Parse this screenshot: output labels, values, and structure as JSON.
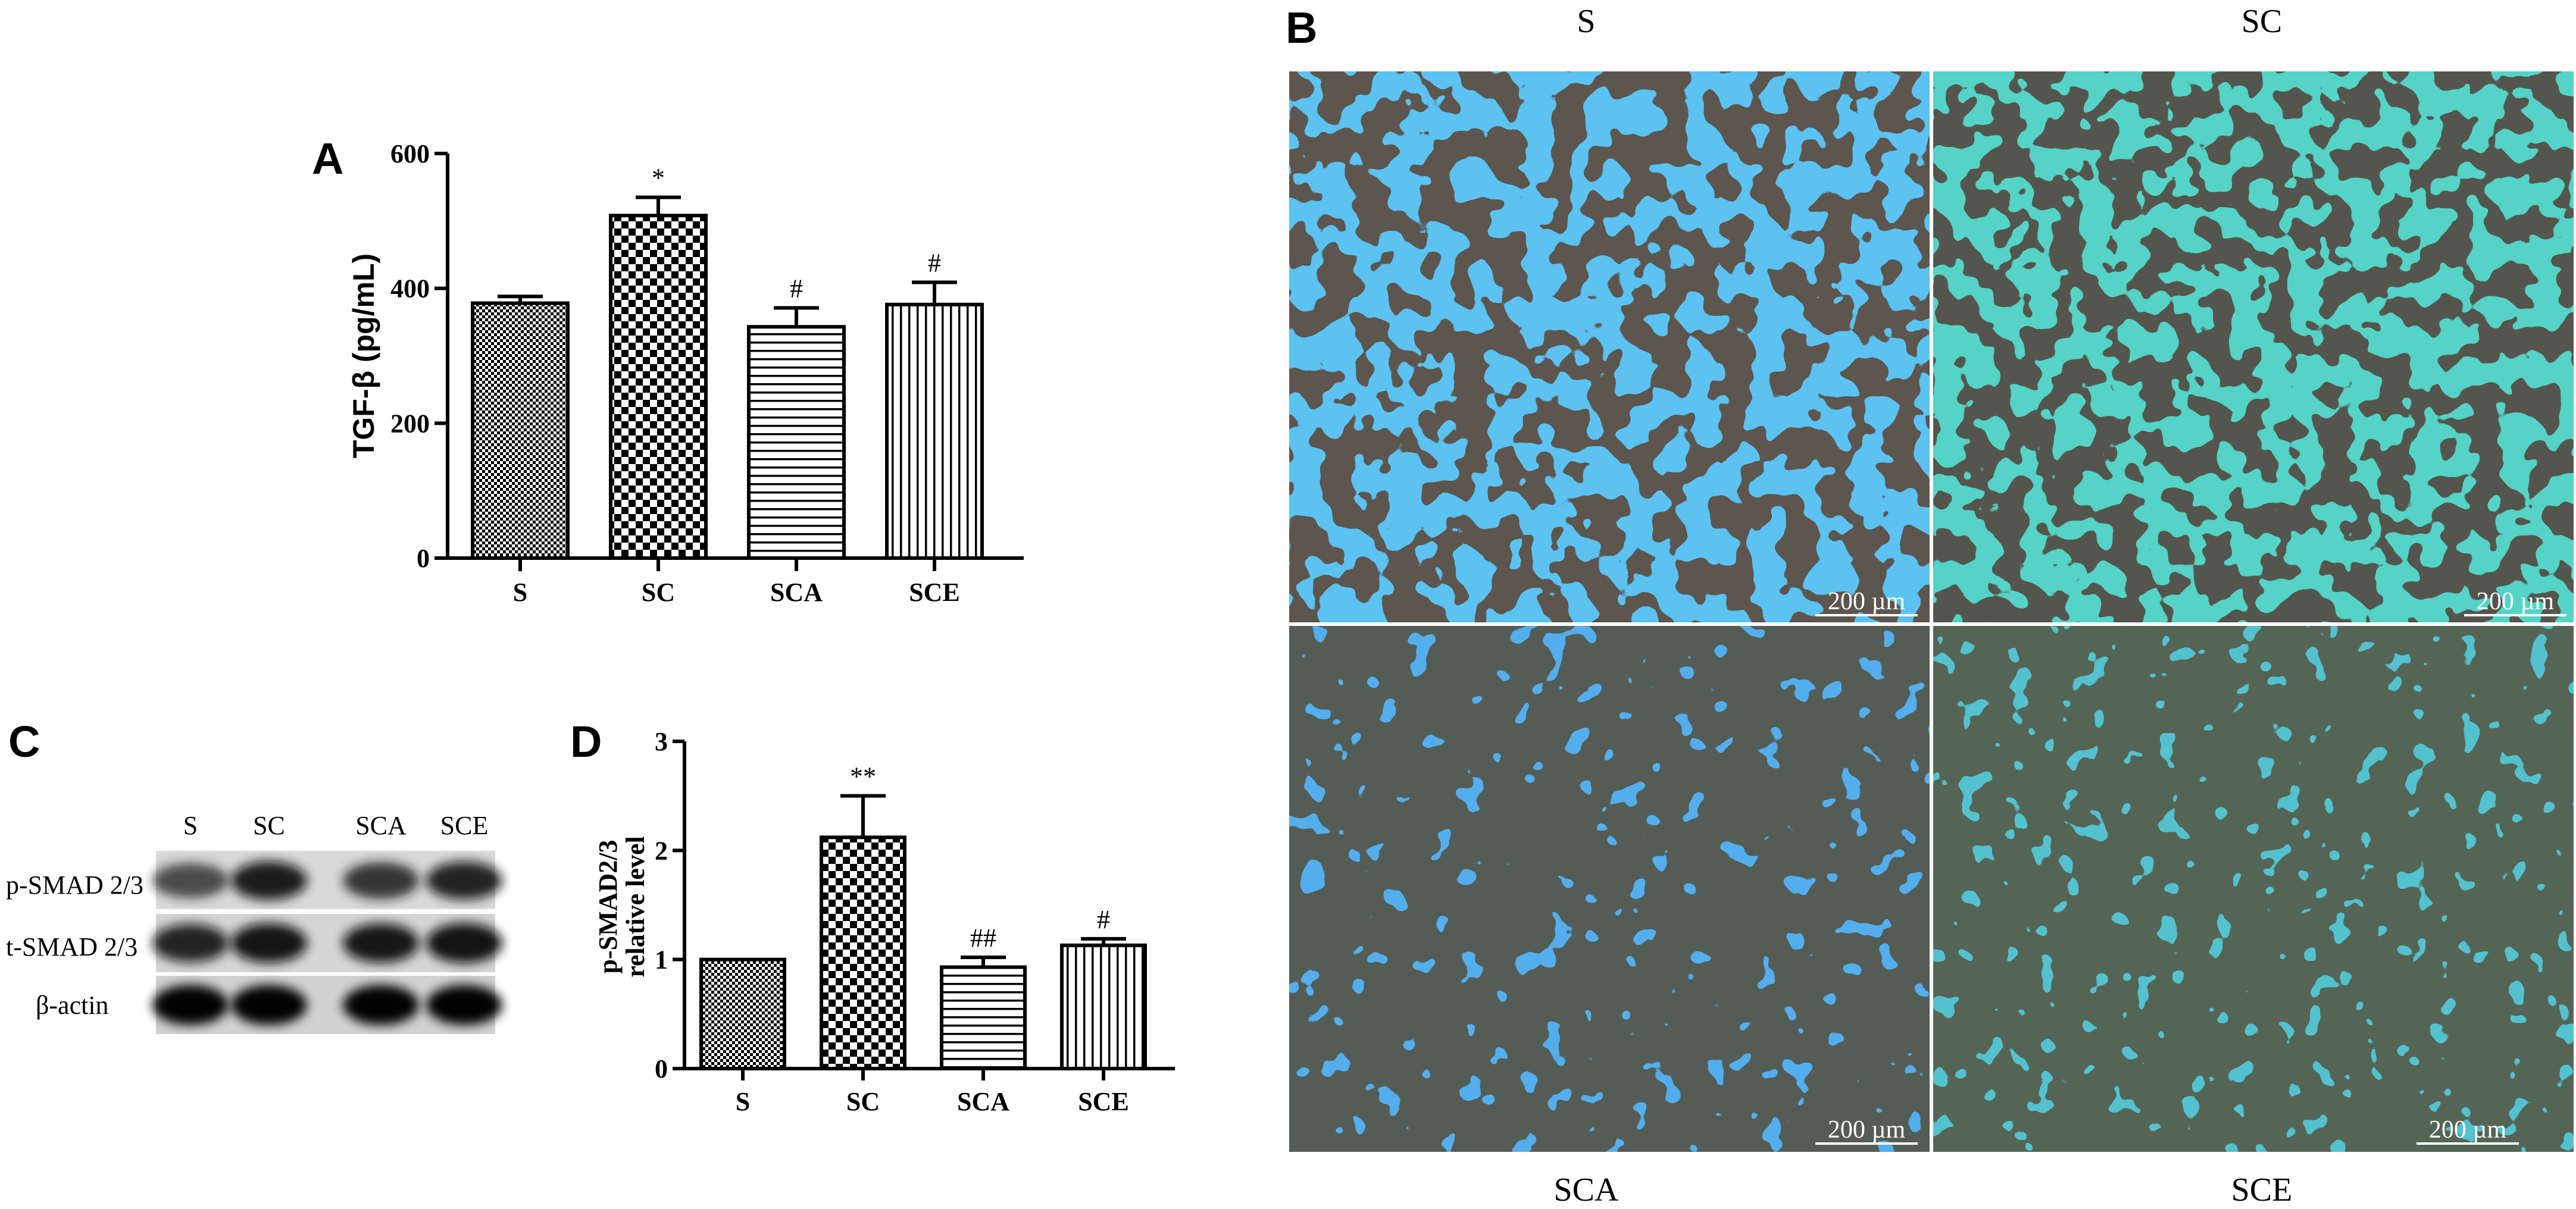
{
  "panels": {
    "A": "A",
    "B": "B",
    "C": "C",
    "D": "D"
  },
  "chart_data": [
    {
      "panel": "A",
      "type": "bar",
      "ylabel": "TGF-β (pg/mL)",
      "ylim": [
        0,
        600
      ],
      "yticks": [
        "0",
        "200",
        "400",
        "600"
      ],
      "categories": [
        "S",
        "SC",
        "SCA",
        "SCE"
      ],
      "values": [
        378,
        508,
        343,
        376
      ],
      "errors": [
        10,
        27,
        28,
        33
      ],
      "annotations": [
        "",
        "*",
        "#",
        "#"
      ],
      "patterns": [
        "fine-checker",
        "checker",
        "horizontal",
        "vertical"
      ]
    },
    {
      "panel": "D",
      "type": "bar",
      "ylabel_line1": "p-SMAD2/3",
      "ylabel_line2": "relative level",
      "ylim": [
        0,
        3
      ],
      "yticks": [
        "0",
        "1",
        "2",
        "3"
      ],
      "categories": [
        "S",
        "SC",
        "SCA",
        "SCE"
      ],
      "values": [
        1.0,
        2.12,
        0.93,
        1.13
      ],
      "errors": [
        0,
        0.38,
        0.09,
        0.06
      ],
      "annotations": [
        "",
        "**",
        "##",
        "#"
      ],
      "patterns": [
        "fine-checker",
        "checker",
        "horizontal",
        "vertical"
      ]
    }
  ],
  "blot": {
    "lanes": [
      "S",
      "SC",
      "SCA",
      "SCE"
    ],
    "rows": [
      {
        "label": "p-SMAD 2/3",
        "intensity": [
          0.55,
          0.85,
          0.7,
          0.8
        ]
      },
      {
        "label": "t-SMAD 2/3",
        "intensity": [
          0.8,
          0.92,
          0.9,
          0.95
        ]
      },
      {
        "label": "β-actin",
        "intensity": [
          0.98,
          0.98,
          0.98,
          0.98
        ]
      }
    ]
  },
  "micrographs": {
    "top_left": "S",
    "top_right": "SC",
    "bottom_left": "SCA",
    "bottom_right": "SCE",
    "scale_bar": "200 µm"
  },
  "colors": {
    "tissue_blue": "#1f5fd0",
    "tissue_green": "#2ea05a",
    "background_dark": "#071a12"
  }
}
